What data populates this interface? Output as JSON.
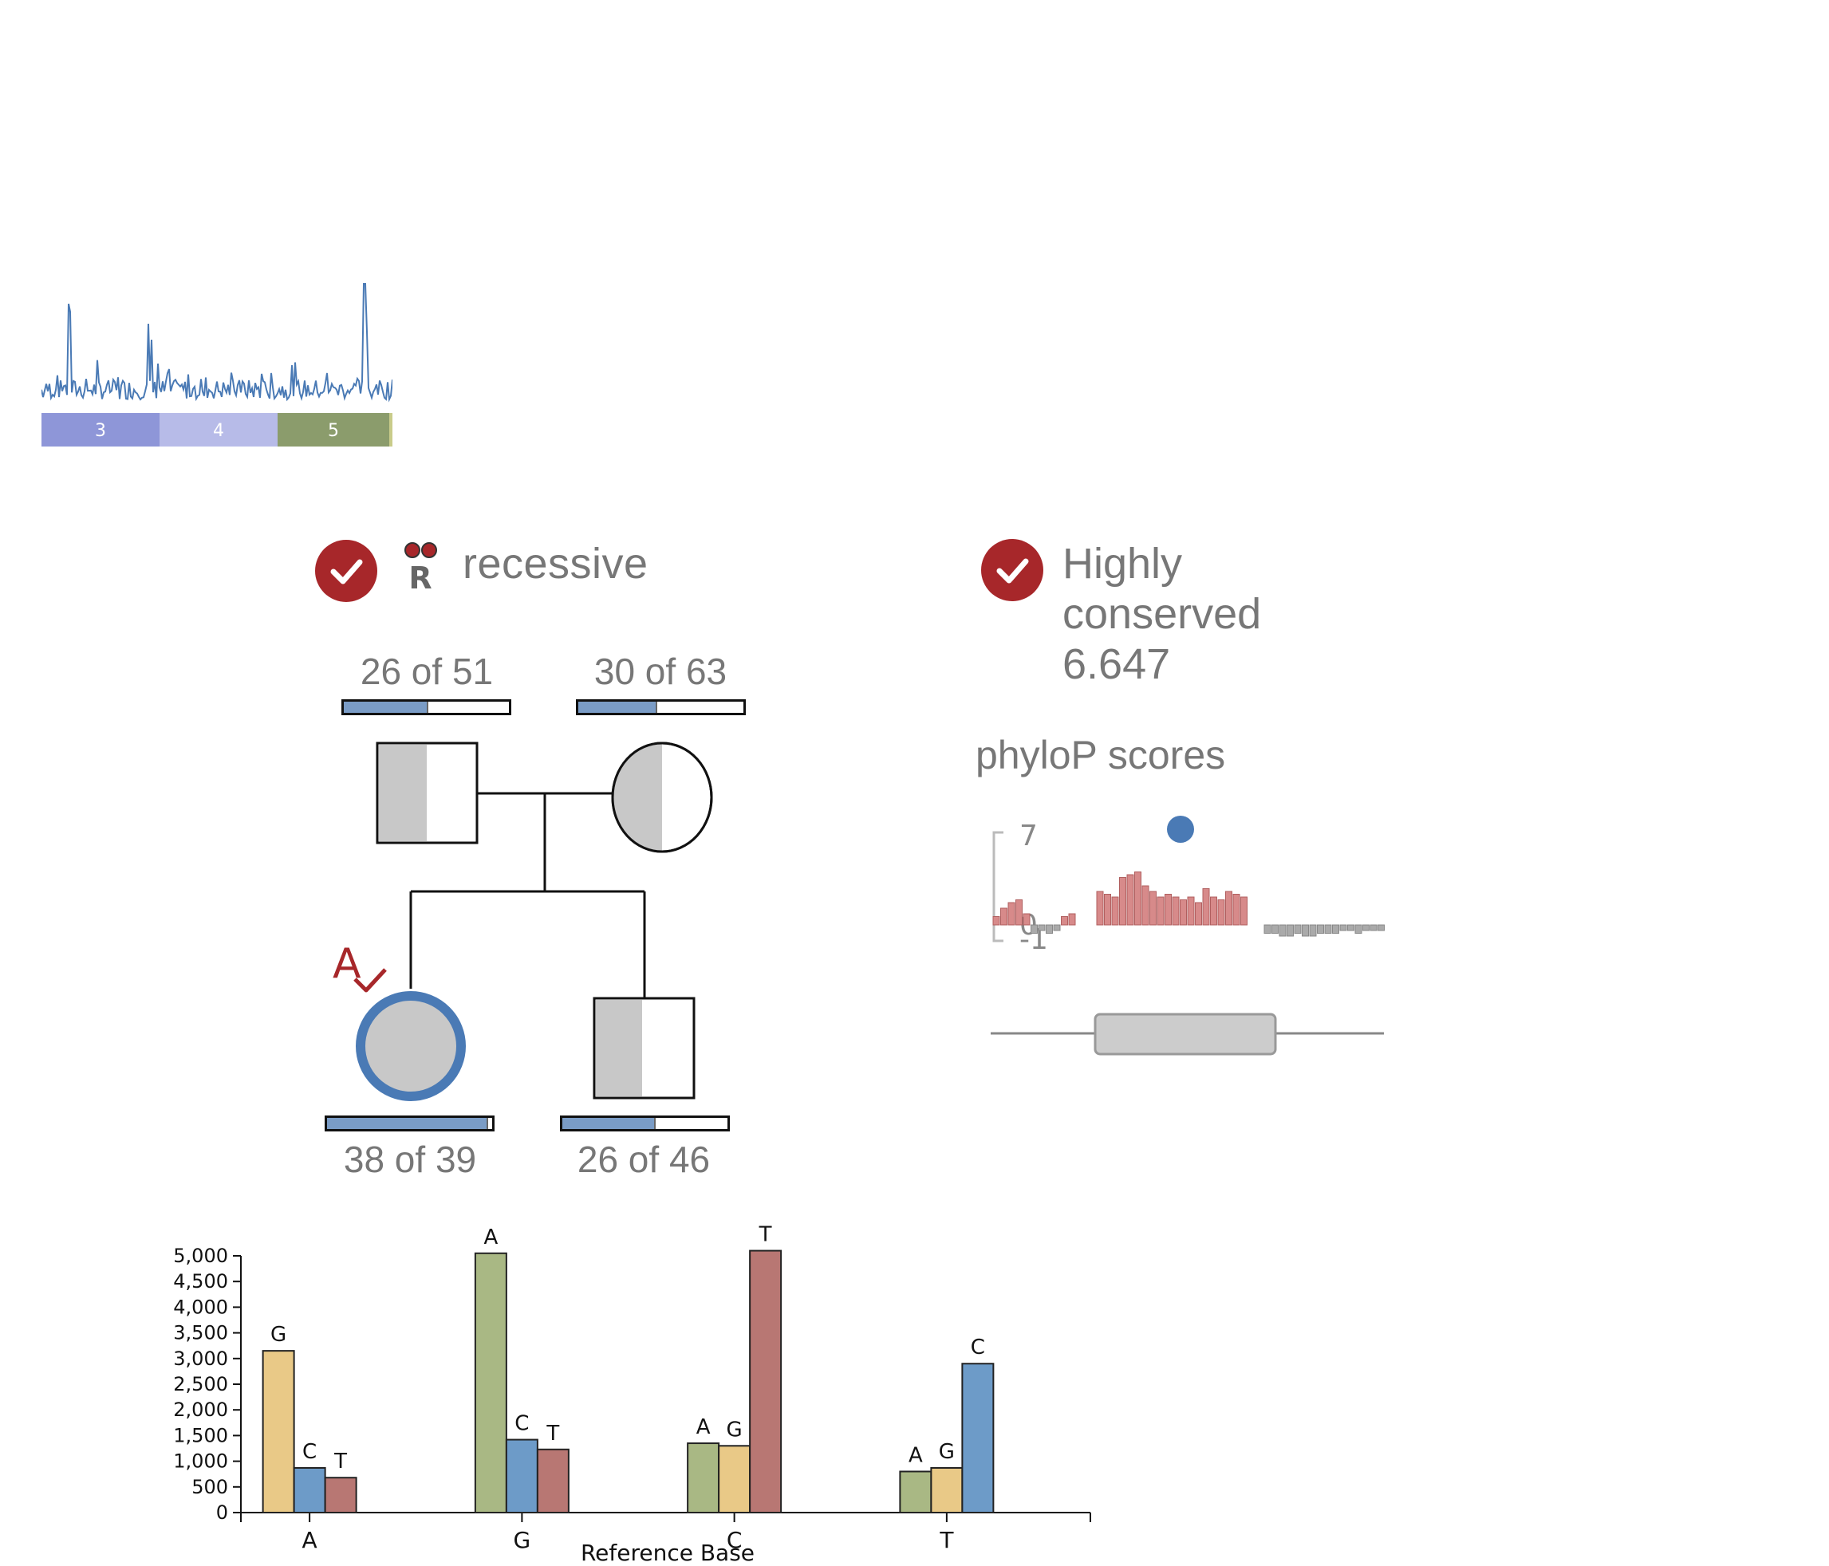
{
  "coverage": {
    "exon_labels": [
      "3",
      "4",
      "5"
    ],
    "exon_colors": [
      "#8e96d8",
      "#b7bbe8",
      "#8b9c6c"
    ],
    "line_color": "#4a7ab5"
  },
  "inheritance": {
    "icon": "check-icon",
    "mode_icon": "recessive-alleles-icon",
    "mode_label": "recessive",
    "father": {
      "count_text": "26 of 51",
      "fraction": 0.51
    },
    "mother": {
      "count_text": "30 of 63",
      "fraction": 0.476
    },
    "proband": {
      "count_text": "38 of 39",
      "fraction": 0.974
    },
    "sibling": {
      "count_text": "26 of 46",
      "fraction": 0.565
    },
    "accent_color": "#a7272a",
    "proband_ring_color": "#4a7ab5",
    "allele_mark": "A"
  },
  "conservation": {
    "icon": "check-icon",
    "title_lines": [
      "Highly",
      "conserved",
      "6.647"
    ],
    "phylop_title": "phyloP scores",
    "axis_labels": {
      "top": "7",
      "zero": "0",
      "bottom": "-1"
    }
  },
  "chart_data": {
    "type": "bar",
    "xlabel": "Reference Base",
    "ylabel": "",
    "ylim": [
      0,
      5000
    ],
    "yticks": [
      "0",
      "500",
      "1,000",
      "1,500",
      "2,000",
      "2,500",
      "3,000",
      "3,500",
      "4,000",
      "4,500",
      "5,000"
    ],
    "base_colors": {
      "A": "#a9b884",
      "C": "#6d9bc8",
      "G": "#e9c987",
      "T": "#b87773"
    },
    "groups": [
      {
        "category": "A",
        "bars": [
          {
            "alt": "G",
            "value": 3150
          },
          {
            "alt": "C",
            "value": 870
          },
          {
            "alt": "T",
            "value": 680
          }
        ]
      },
      {
        "category": "G",
        "bars": [
          {
            "alt": "A",
            "value": 5050
          },
          {
            "alt": "C",
            "value": 1420
          },
          {
            "alt": "T",
            "value": 1230
          }
        ]
      },
      {
        "category": "C",
        "bars": [
          {
            "alt": "A",
            "value": 1350
          },
          {
            "alt": "G",
            "value": 1300
          },
          {
            "alt": "T",
            "value": 5100
          }
        ]
      },
      {
        "category": "T",
        "bars": [
          {
            "alt": "A",
            "value": 800
          },
          {
            "alt": "G",
            "value": 870
          },
          {
            "alt": "C",
            "value": 2900
          }
        ]
      }
    ]
  }
}
